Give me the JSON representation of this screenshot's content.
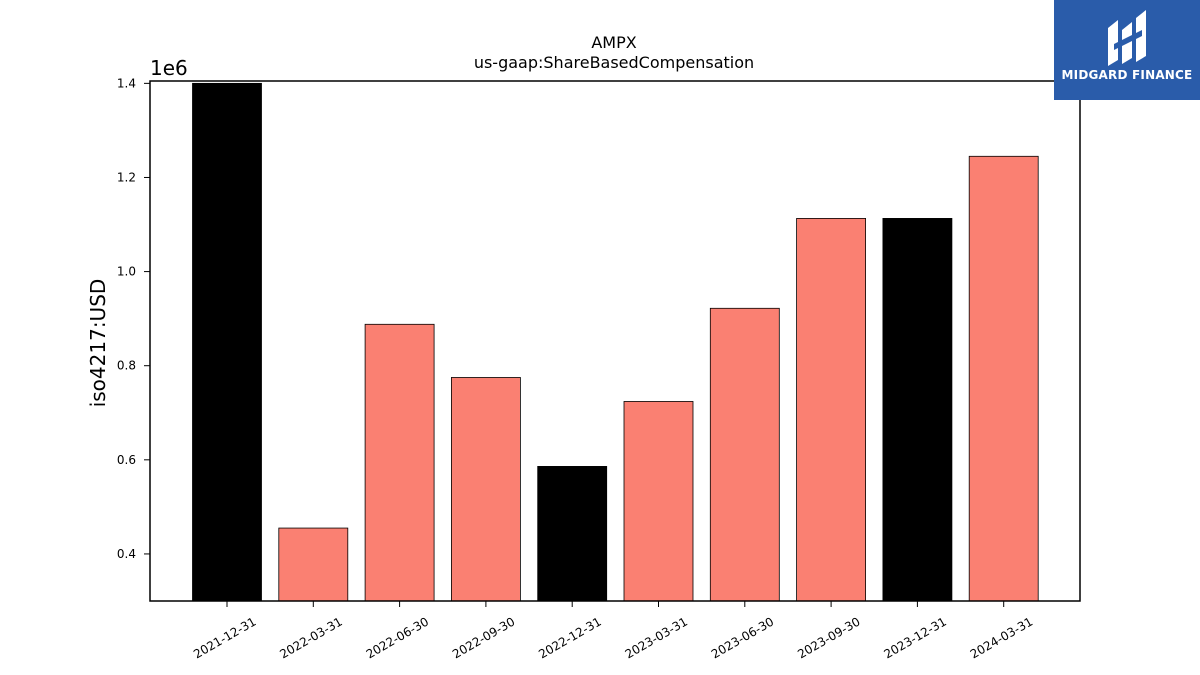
{
  "brand": {
    "name": "MIDGARD FINANCE",
    "bg_color": "#2a5caa"
  },
  "chart_data": {
    "type": "bar",
    "title": "AMPX",
    "subtitle": "us-gaap:ShareBasedCompensation",
    "xlabel": "",
    "ylabel": "iso4217:USD",
    "offset_label": "1e6",
    "categories": [
      "2021-12-31",
      "2022-03-31",
      "2022-06-30",
      "2022-09-30",
      "2022-12-31",
      "2023-03-31",
      "2023-06-30",
      "2023-09-30",
      "2023-12-31",
      "2024-03-31"
    ],
    "values": [
      1.4,
      0.455,
      0.888,
      0.775,
      0.586,
      0.724,
      0.922,
      1.113,
      1.113,
      1.245
    ],
    "bar_colors": [
      "#000000",
      "#fa8072",
      "#fa8072",
      "#fa8072",
      "#000000",
      "#fa8072",
      "#fa8072",
      "#fa8072",
      "#000000",
      "#fa8072"
    ],
    "yticks": [
      0.4,
      0.6,
      0.8,
      1.0,
      1.2,
      1.4
    ],
    "ytick_labels": [
      "0.4",
      "0.6",
      "0.8",
      "1.0",
      "1.2",
      "1.4"
    ],
    "ylim": [
      0.3,
      1.405
    ],
    "grid": false,
    "legend": "none"
  }
}
